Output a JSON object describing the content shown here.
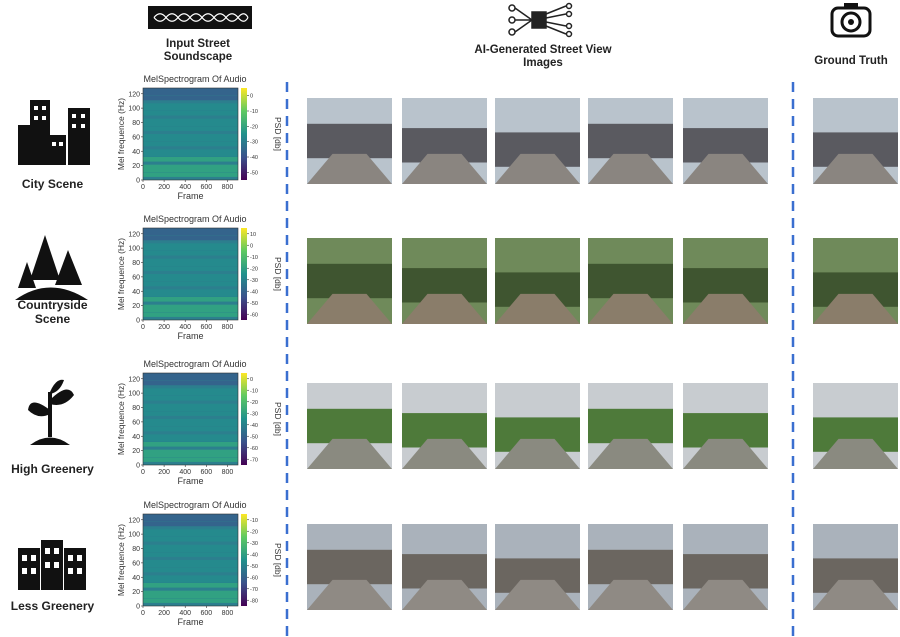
{
  "header": {
    "input": "Input Street Soundscape",
    "generated": "AI-Generated Street View Images",
    "truth": "Ground Truth"
  },
  "rows": [
    {
      "label": "City Scene",
      "spectrogram": {
        "title": "MelSpectrogram Of Audio",
        "ylabel": "Mel frequence (Hz)",
        "xlabel": "Frame",
        "cblabel": "PSD [db]",
        "xlim": [
          0,
          900
        ],
        "xticks": [
          0,
          200,
          400,
          600,
          800
        ],
        "ylim": [
          0,
          128
        ],
        "yticks": [
          0,
          20,
          40,
          60,
          80,
          100,
          120
        ],
        "cblim": [
          -55,
          5
        ],
        "cbticks": [
          0,
          -10,
          -20,
          -30,
          -40,
          -50
        ]
      }
    },
    {
      "label": "Countryside Scene",
      "spectrogram": {
        "title": "MelSpectrogram Of Audio",
        "ylabel": "Mel frequence (Hz)",
        "xlabel": "Frame",
        "cblabel": "PSD [db]",
        "xlim": [
          0,
          900
        ],
        "xticks": [
          0,
          200,
          400,
          600,
          800
        ],
        "ylim": [
          0,
          128
        ],
        "yticks": [
          0,
          20,
          40,
          60,
          80,
          100,
          120
        ],
        "cblim": [
          -65,
          15
        ],
        "cbticks": [
          10,
          0,
          -10,
          -20,
          -30,
          -40,
          -50,
          -60
        ]
      }
    },
    {
      "label": "High Greenery",
      "spectrogram": {
        "title": "MelSpectrogram Of Audio",
        "ylabel": "Mel frequence (Hz)",
        "xlabel": "Frame",
        "cblabel": "PSD [db]",
        "xlim": [
          0,
          900
        ],
        "xticks": [
          0,
          200,
          400,
          600,
          800
        ],
        "ylim": [
          0,
          128
        ],
        "yticks": [
          0,
          20,
          40,
          60,
          80,
          100,
          120
        ],
        "cblim": [
          -75,
          5
        ],
        "cbticks": [
          0,
          -10,
          -20,
          -30,
          -40,
          -50,
          -60,
          -70
        ]
      }
    },
    {
      "label": "Less Greenery",
      "spectrogram": {
        "title": "MelSpectrogram Of Audio",
        "ylabel": "Mel frequence (Hz)",
        "xlabel": "Frame",
        "cblabel": "PSD [db]",
        "xlim": [
          0,
          900
        ],
        "xticks": [
          0,
          200,
          400,
          600,
          800
        ],
        "ylim": [
          0,
          128
        ],
        "yticks": [
          0,
          20,
          40,
          60,
          80,
          100,
          120
        ],
        "cblim": [
          -85,
          -5
        ],
        "cbticks": [
          -10,
          -20,
          -30,
          -40,
          -50,
          -60,
          -70,
          -80
        ]
      }
    }
  ]
}
